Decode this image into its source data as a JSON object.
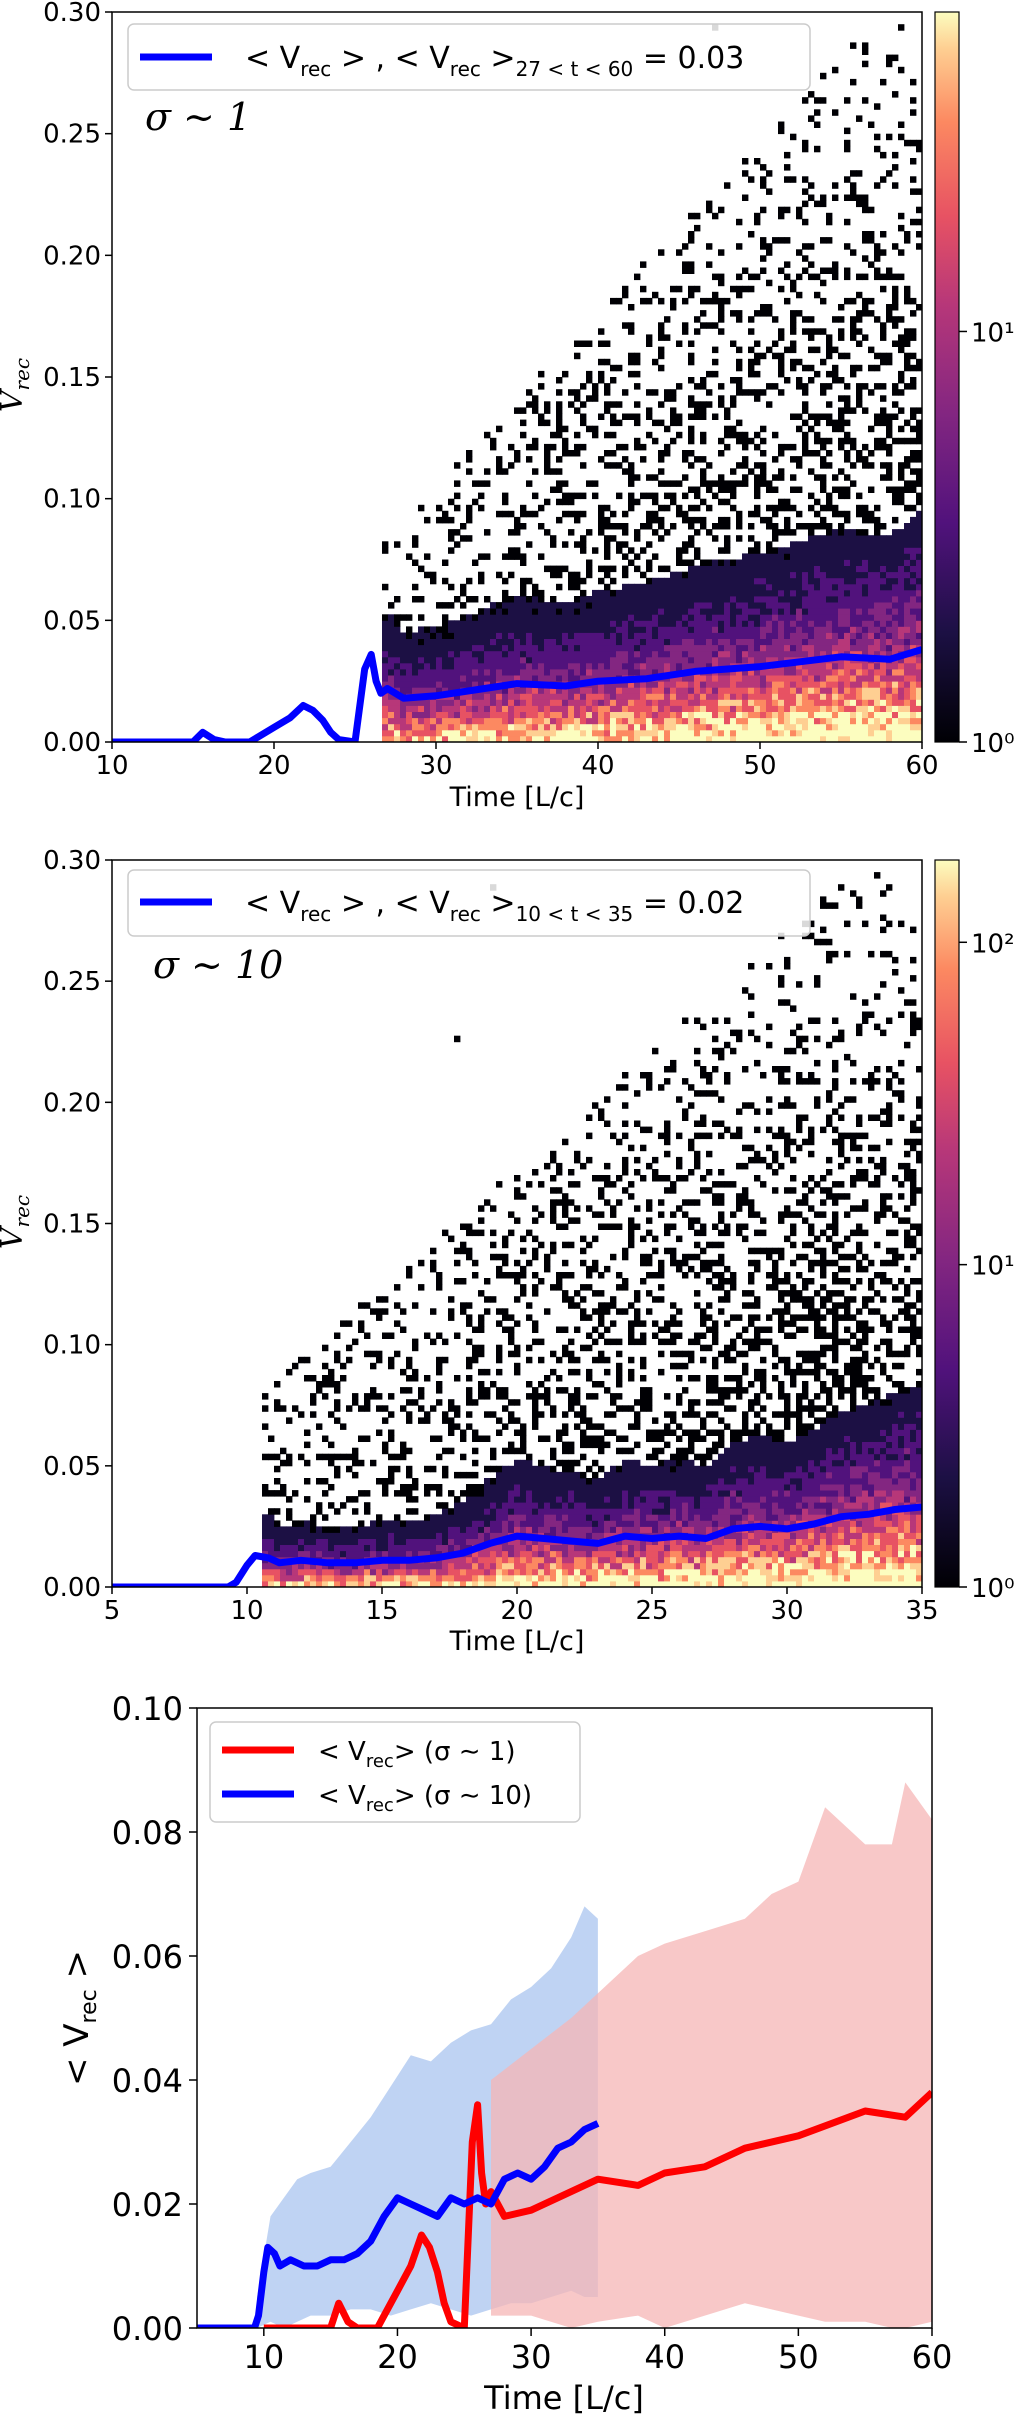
{
  "chart_data": [
    {
      "type": "heatmap",
      "title": "",
      "xlabel": "Time [L/c]",
      "ylabel": "V_rec",
      "xlim": [
        10,
        60
      ],
      "ylim": [
        0,
        0.3
      ],
      "xticks": [
        10,
        20,
        30,
        40,
        50,
        60
      ],
      "xtick_labels": [
        "10",
        "20",
        "30",
        "40",
        "50",
        "60"
      ],
      "yticks": [
        0,
        0.05,
        0.1,
        0.15,
        0.2,
        0.25,
        0.3
      ],
      "ytick_labels": [
        "0.00",
        "0.05",
        "0.10",
        "0.15",
        "0.20",
        "0.25",
        "0.30"
      ],
      "colorbar": {
        "scale": "log",
        "range": [
          1,
          60
        ],
        "tick_labels": [
          "10⁰",
          "10¹"
        ],
        "tick_values": [
          1,
          10
        ],
        "colormap": "magma"
      },
      "annotation": "σ ∼ 1",
      "legend": {
        "location": "top-left",
        "entry": "< V_rec > ,  < V_rec >_{27 < t < 60} = 0.03",
        "entry_main": "< V",
        "entry_sub": "rec",
        "entry_range": "27 < t < 60",
        "entry_value": "= 0.03"
      },
      "series": [
        {
          "name": "<V_rec>",
          "color": "#0000ff",
          "x": [
            10,
            15,
            15.6,
            16.3,
            17,
            18.5,
            19,
            20,
            21,
            21.8,
            22.4,
            23,
            23.5,
            24,
            25,
            25.6,
            26,
            26.3,
            26.6,
            27,
            28,
            30,
            33,
            35,
            38,
            40,
            43,
            46,
            50,
            55,
            58,
            60
          ],
          "y": [
            0,
            0,
            0.004,
            0.001,
            0,
            0,
            0.002,
            0.006,
            0.01,
            0.015,
            0.013,
            0.009,
            0.004,
            0.001,
            0,
            0.03,
            0.036,
            0.025,
            0.02,
            0.022,
            0.018,
            0.019,
            0.022,
            0.024,
            0.023,
            0.025,
            0.026,
            0.029,
            0.031,
            0.035,
            0.034,
            0.038
          ]
        }
      ]
    },
    {
      "type": "heatmap",
      "title": "",
      "xlabel": "Time [L/c]",
      "ylabel": "V_rec",
      "xlim": [
        5,
        35
      ],
      "ylim": [
        0,
        0.3
      ],
      "xticks": [
        5,
        10,
        15,
        20,
        25,
        30,
        35
      ],
      "xtick_labels": [
        "5",
        "10",
        "15",
        "20",
        "25",
        "30",
        "35"
      ],
      "yticks": [
        0,
        0.05,
        0.1,
        0.15,
        0.2,
        0.25,
        0.3
      ],
      "ytick_labels": [
        "0.00",
        "0.05",
        "0.10",
        "0.15",
        "0.20",
        "0.25",
        "0.30"
      ],
      "colorbar": {
        "scale": "log",
        "range": [
          1,
          180
        ],
        "tick_labels": [
          "10⁰",
          "10¹",
          "10²"
        ],
        "tick_values": [
          1,
          10,
          100
        ],
        "colormap": "magma"
      },
      "annotation": "σ ∼ 10",
      "legend": {
        "location": "top-left",
        "entry": "< V_rec > ,  < V_rec >_{10 < t < 35} = 0.02",
        "entry_main": "< V",
        "entry_sub": "rec",
        "entry_range": "10 < t < 35",
        "entry_value": "= 0.02"
      },
      "series": [
        {
          "name": "<V_rec>",
          "color": "#0000ff",
          "x": [
            5,
            9.3,
            9.6,
            10,
            10.3,
            10.8,
            11.2,
            12,
            13,
            14,
            15,
            16,
            17,
            18,
            19,
            20,
            21,
            22,
            23,
            24,
            25,
            26,
            27,
            28,
            29,
            30,
            31,
            32,
            33,
            34,
            35
          ],
          "y": [
            0,
            0,
            0.002,
            0.009,
            0.013,
            0.012,
            0.01,
            0.011,
            0.01,
            0.01,
            0.011,
            0.011,
            0.012,
            0.014,
            0.018,
            0.021,
            0.02,
            0.019,
            0.018,
            0.021,
            0.02,
            0.021,
            0.02,
            0.024,
            0.025,
            0.024,
            0.026,
            0.029,
            0.03,
            0.032,
            0.033
          ]
        }
      ]
    },
    {
      "type": "line",
      "title": "",
      "xlabel": "Time [L/c]",
      "ylabel": "< V_rec >",
      "xlim": [
        5,
        60
      ],
      "ylim": [
        0,
        0.1
      ],
      "xticks": [
        10,
        20,
        30,
        40,
        50,
        60
      ],
      "xtick_labels": [
        "10",
        "20",
        "30",
        "40",
        "50",
        "60"
      ],
      "yticks": [
        0,
        0.02,
        0.04,
        0.06,
        0.08,
        0.1
      ],
      "ytick_labels": [
        "0.00",
        "0.02",
        "0.04",
        "0.06",
        "0.08",
        "0.10"
      ],
      "legend": {
        "location": "top-left",
        "entries": [
          {
            "label": "< V_rec > (σ ∼ 1)",
            "color": "#ff0000",
            "main": "< V",
            "sub": "rec",
            "tail": ">  (σ ∼ 1)"
          },
          {
            "label": "< V_rec > (σ ∼ 10)",
            "color": "#0000ff",
            "main": "< V",
            "sub": "rec",
            "tail": ">  (σ ∼ 10)"
          }
        ]
      },
      "series": [
        {
          "name": "< V_rec > (σ ∼ 1)",
          "color": "#ff0000",
          "band_color": "#f5b5b5",
          "x": [
            10,
            15,
            15.6,
            16.3,
            17,
            18.5,
            19,
            20,
            21,
            21.8,
            22.4,
            23,
            23.5,
            24,
            25,
            25.6,
            26,
            26.3,
            26.6,
            27,
            28,
            30,
            33,
            35,
            38,
            40,
            43,
            46,
            50,
            55,
            58,
            60
          ],
          "y": [
            0,
            0,
            0.004,
            0.001,
            0,
            0,
            0.002,
            0.006,
            0.01,
            0.015,
            0.013,
            0.009,
            0.004,
            0.001,
            0,
            0.03,
            0.036,
            0.025,
            0.02,
            0.022,
            0.018,
            0.019,
            0.022,
            0.024,
            0.023,
            0.025,
            0.026,
            0.029,
            0.031,
            0.035,
            0.034,
            0.038
          ],
          "band_x": [
            27,
            30,
            33,
            35,
            38,
            40,
            43,
            46,
            48,
            50,
            52,
            55,
            57,
            58,
            60
          ],
          "band_upper": [
            0.04,
            0.045,
            0.05,
            0.054,
            0.06,
            0.062,
            0.064,
            0.066,
            0.07,
            0.072,
            0.084,
            0.078,
            0.078,
            0.088,
            0.082
          ],
          "band_lower": [
            0.002,
            0.002,
            0.0,
            0.001,
            0.002,
            0.0,
            0.002,
            0.004,
            0.003,
            0.002,
            0.001,
            0.001,
            0.0,
            0.0,
            0.001
          ]
        },
        {
          "name": "< V_rec > (σ ∼ 10)",
          "color": "#0000ff",
          "band_color": "#a9c4ef",
          "x": [
            5,
            9.3,
            9.6,
            10,
            10.3,
            10.8,
            11.2,
            12,
            13,
            14,
            15,
            16,
            17,
            18,
            19,
            20,
            21,
            22,
            23,
            24,
            25,
            26,
            27,
            28,
            29,
            30,
            31,
            32,
            33,
            34,
            35
          ],
          "y": [
            0,
            0,
            0.002,
            0.009,
            0.013,
            0.012,
            0.01,
            0.011,
            0.01,
            0.01,
            0.011,
            0.011,
            0.012,
            0.014,
            0.018,
            0.021,
            0.02,
            0.019,
            0.018,
            0.021,
            0.02,
            0.021,
            0.02,
            0.024,
            0.025,
            0.024,
            0.026,
            0.029,
            0.03,
            0.032,
            0.033
          ],
          "band_x": [
            9.5,
            10.5,
            11.5,
            12.5,
            13.5,
            15,
            16.5,
            18,
            19.5,
            21,
            22.5,
            24,
            25.5,
            27,
            28.5,
            30,
            31.5,
            33,
            34,
            35
          ],
          "band_upper": [
            0.005,
            0.018,
            0.021,
            0.024,
            0.025,
            0.026,
            0.03,
            0.034,
            0.039,
            0.044,
            0.043,
            0.046,
            0.048,
            0.049,
            0.053,
            0.055,
            0.058,
            0.063,
            0.068,
            0.066
          ],
          "band_lower": [
            0.0,
            0.001,
            0.0,
            0.001,
            0.002,
            0.002,
            0.003,
            0.003,
            0.002,
            0.003,
            0.004,
            0.003,
            0.002,
            0.003,
            0.004,
            0.004,
            0.005,
            0.006,
            0.005,
            0.005
          ]
        }
      ]
    }
  ]
}
